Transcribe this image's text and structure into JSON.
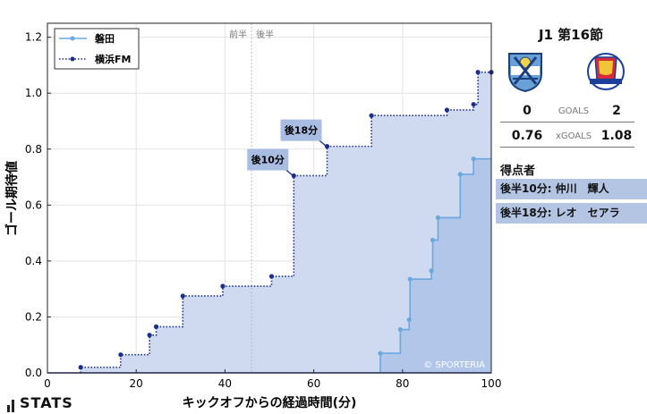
{
  "chart_data": {
    "type": "line",
    "step": true,
    "title": "",
    "xlabel": "キックオフからの経過時間(分)",
    "ylabel": "ゴール期待値",
    "xlim": [
      0,
      100
    ],
    "ylim": [
      0,
      1.25
    ],
    "xticks": [
      "0",
      "20",
      "40",
      "60",
      "80",
      "100"
    ],
    "yticks": [
      "0.0",
      "0.2",
      "0.4",
      "0.6",
      "0.8",
      "1.0",
      "1.2"
    ],
    "grid": true,
    "legend_position": "top-left",
    "halftime_label": "前半　後半",
    "halftime_x": 46,
    "watermark": "© SPORTERIA",
    "series": [
      {
        "name": "磐田",
        "color": "#6aa8e0",
        "fill": "#b1c6e8",
        "style": "solid",
        "x": [
          75,
          79.5,
          81.5,
          81.7,
          86.5,
          86.8,
          88,
          93,
          96
        ],
        "y": [
          0.07,
          0.155,
          0.19,
          0.335,
          0.365,
          0.475,
          0.555,
          0.71,
          0.765
        ]
      },
      {
        "name": "横浜FM",
        "color": "#1a2f8c",
        "fill": "#cfd9ef",
        "style": "dotted",
        "x": [
          7.5,
          16.5,
          23,
          24.5,
          30.5,
          39.5,
          50.5,
          55.5,
          63,
          73,
          90,
          96,
          97,
          100
        ],
        "y": [
          0.02,
          0.065,
          0.135,
          0.165,
          0.275,
          0.31,
          0.345,
          0.705,
          0.81,
          0.92,
          0.94,
          0.96,
          1.075,
          1.075
        ]
      }
    ],
    "annotations": [
      {
        "label": "後10分",
        "x": 55.5,
        "y": 0.705
      },
      {
        "label": "後18分",
        "x": 63,
        "y": 0.81
      }
    ]
  },
  "match": {
    "title": "J1 第16節",
    "home_logo": "jubilo-iwata-crest-icon",
    "away_logo": "yokohama-f-marinos-crest-icon",
    "goals": {
      "home": "0",
      "label": "GOALS",
      "away": "2"
    },
    "xgoals": {
      "home": "0.76",
      "label": "xGOALS",
      "away": "1.08"
    },
    "scorers_title": "得点者",
    "scorers": [
      "後半10分: 仲川　輝人",
      "後半18分: レオ　セアラ"
    ]
  },
  "brand": {
    "name": "STATS"
  },
  "colors": {
    "home": "#6aa8e0",
    "away": "#1a2f8c",
    "scorer_bg": "#b4c5e4"
  }
}
